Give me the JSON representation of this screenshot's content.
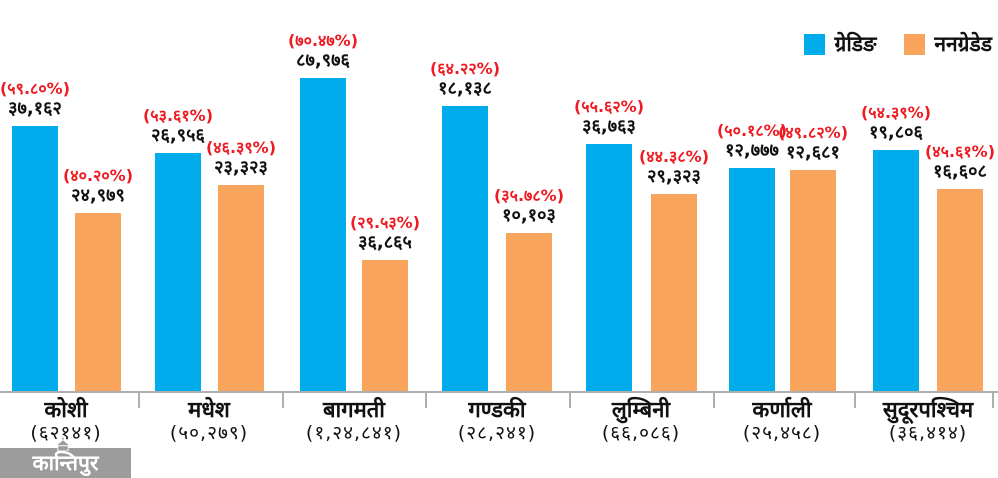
{
  "legend": {
    "items": [
      {
        "label": "ग्रेडिङ",
        "color": "#00ACEC"
      },
      {
        "label": "ननग्रेडेड",
        "color": "#F8A45D"
      }
    ]
  },
  "colors": {
    "grading_blue": "#00ACEC",
    "nongraded_orange": "#F8A45D",
    "percent_red": "#EE1B22",
    "axis_gray": "#AFAFAF"
  },
  "watermark": {
    "text": "कान्तिपुर"
  },
  "chart_data": {
    "type": "bar",
    "title": "",
    "legend_position": "top-right",
    "note": "Paired bars per province. Red bracketed labels are percentage share, black labels are counts, bracketed number under each province name is the group total. Bar heights are drawn proportional to the percentage (≈4.45 px per percent).",
    "categories": [
      "कोशी",
      "मधेश",
      "बागमती",
      "गण्डकी",
      "लुम्बिनी",
      "कर्णाली",
      "सुदूरपश्चिम"
    ],
    "category_total_labels": [
      "(६२१४१)",
      "(५०,२७९)",
      "(१,२४,८४१)",
      "(२८,२४१)",
      "(६६,०८६)",
      "(२५,४५८)",
      "(३६,४१४)"
    ],
    "category_totals": [
      62141,
      50279,
      124841,
      28241,
      66086,
      25458,
      36414
    ],
    "series": [
      {
        "name": "ग्रेडिङ",
        "color": "#00ACEC",
        "values": [
          37162,
          26956,
          87976,
          18138,
          36763,
          12777,
          19806
        ],
        "value_labels": [
          "३७,१६२",
          "२६,९५६",
          "८७,९७६",
          "१८,१३८",
          "३६,७६३",
          "१२,७७७",
          "१९,८०६"
        ],
        "percents": [
          59.8,
          53.61,
          70.47,
          64.22,
          55.62,
          50.18,
          54.39
        ],
        "percent_labels": [
          "(५९.८०%)",
          "(५३.६१%)",
          "(७०.४७%)",
          "(६४.२२%)",
          "(५५.६२%)",
          "(५०.१८%)",
          "(५४.३९%)"
        ]
      },
      {
        "name": "ननग्रेडेड",
        "color": "#F8A45D",
        "values": [
          24979,
          23323,
          36865,
          10103,
          29323,
          12681,
          16608
        ],
        "value_labels": [
          "२४,९७९",
          "२३,३२३",
          "३६,८६५",
          "१०,१०३",
          "२९,३२३",
          "१२,६८१",
          "१६,६०८"
        ],
        "percents": [
          40.2,
          46.39,
          29.53,
          35.78,
          44.38,
          49.82,
          45.61
        ],
        "percent_labels": [
          "(४०.२०%)",
          "(४६.३९%)",
          "(२९.५३%)",
          "(३५.७८%)",
          "(४४.३८%)",
          "(४९.८२%)",
          "(४५.६१%)"
        ]
      }
    ]
  }
}
